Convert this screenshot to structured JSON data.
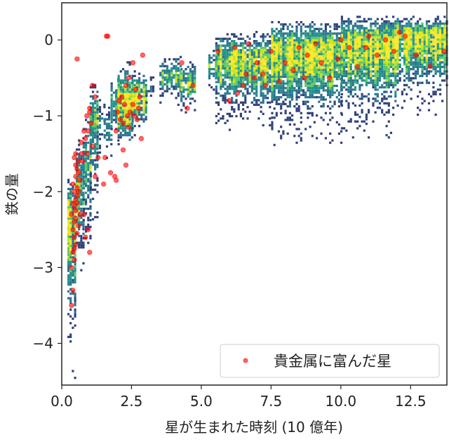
{
  "chart_data": {
    "type": "heatmap",
    "xlabel": "星が生まれた時刻 (10 億年)",
    "ylabel": "鉄の量",
    "xlim": [
      0,
      13.8
    ],
    "ylim": [
      -4.55,
      0.49
    ],
    "xticks": [
      "0.0",
      "2.5",
      "5.0",
      "7.5",
      "10.0",
      "12.5"
    ],
    "xtick_values": [
      0,
      2.5,
      5,
      7.5,
      10,
      12.5
    ],
    "yticks": [
      "0",
      "−1",
      "−2",
      "−3",
      "−4"
    ],
    "ytick_values": [
      0,
      -1,
      -2,
      -3,
      -4
    ],
    "grid": false,
    "colormap": [
      "#30407a",
      "#2c728e",
      "#21918c",
      "#5ec962",
      "#c8e020",
      "#fde725"
    ],
    "histogram_columns": {
      "description_fields": [
        "x_start",
        "x_end",
        "fe_low",
        "fe_high",
        "fe_peak",
        "strength"
      ],
      "rows": [
        [
          0.2,
          0.5,
          -4.5,
          -1.8,
          -2.3,
          0.8
        ],
        [
          0.5,
          0.75,
          -3.2,
          -1.3,
          -2.0,
          0.9
        ],
        [
          0.75,
          1.0,
          -2.9,
          -1.0,
          -1.6,
          0.6
        ],
        [
          1.0,
          1.25,
          -2.5,
          -0.6,
          -1.0,
          0.5
        ],
        [
          1.25,
          1.5,
          -1.5,
          -0.8,
          -1.1,
          0.3
        ],
        [
          1.5,
          1.75,
          -1.6,
          -0.9,
          -1.2,
          0.3
        ],
        [
          1.75,
          2.0,
          -1.4,
          -0.5,
          -0.9,
          0.6
        ],
        [
          2.0,
          2.5,
          -1.6,
          -0.3,
          -0.9,
          0.8
        ],
        [
          2.5,
          3.0,
          -1.3,
          -0.4,
          -0.8,
          0.8
        ],
        [
          3.0,
          3.3,
          -0.9,
          -0.5,
          -0.7,
          0.2
        ],
        [
          3.5,
          4.25,
          -0.9,
          -0.2,
          -0.5,
          0.6
        ],
        [
          4.25,
          4.75,
          -1.0,
          -0.3,
          -0.6,
          0.7
        ],
        [
          5.25,
          5.5,
          -0.7,
          -0.1,
          -0.4,
          0.5
        ],
        [
          5.5,
          7.5,
          -1.2,
          0.1,
          -0.3,
          0.85
        ],
        [
          7.5,
          10.0,
          -1.4,
          0.25,
          -0.15,
          0.9
        ],
        [
          10.0,
          12.0,
          -1.3,
          0.3,
          -0.05,
          0.95
        ],
        [
          12.0,
          13.8,
          -1.0,
          0.3,
          0.05,
          0.95
        ]
      ]
    },
    "scatter": {
      "name": "貴金属に富んだ星",
      "color": "#ff0000",
      "points": [
        [
          0.45,
          -1.55
        ],
        [
          0.5,
          -1.65
        ],
        [
          0.55,
          -1.7
        ],
        [
          0.6,
          -1.75
        ],
        [
          0.5,
          -1.8
        ],
        [
          0.4,
          -1.9
        ],
        [
          0.45,
          -2.0
        ],
        [
          0.55,
          -2.05
        ],
        [
          0.5,
          -2.1
        ],
        [
          0.4,
          -2.15
        ],
        [
          0.45,
          -2.2
        ],
        [
          0.5,
          -2.25
        ],
        [
          0.35,
          -2.3
        ],
        [
          0.5,
          -2.35
        ],
        [
          0.45,
          -2.4
        ],
        [
          0.4,
          -2.5
        ],
        [
          0.55,
          -2.55
        ],
        [
          0.45,
          -2.6
        ],
        [
          0.5,
          -2.7
        ],
        [
          0.4,
          -2.8
        ],
        [
          0.45,
          -2.9
        ],
        [
          0.35,
          -3.0
        ],
        [
          0.4,
          -3.3
        ],
        [
          0.35,
          -3.5
        ],
        [
          0.6,
          -1.6
        ],
        [
          0.65,
          -1.85
        ],
        [
          0.6,
          -2.0
        ],
        [
          0.7,
          -1.5
        ],
        [
          0.65,
          -2.3
        ],
        [
          0.55,
          -1.95
        ],
        [
          0.6,
          -2.45
        ],
        [
          0.5,
          -1.5
        ],
        [
          0.45,
          -2.75
        ],
        [
          0.55,
          -2.15
        ],
        [
          0.8,
          -1.2
        ],
        [
          0.9,
          -1.0
        ],
        [
          1.0,
          -0.95
        ],
        [
          1.05,
          -1.1
        ],
        [
          0.95,
          -1.2
        ],
        [
          0.85,
          -1.3
        ],
        [
          1.0,
          -0.9
        ],
        [
          1.1,
          -1.4
        ],
        [
          0.9,
          -1.5
        ],
        [
          1.1,
          -0.6
        ],
        [
          1.2,
          -0.75
        ],
        [
          0.7,
          -1.35
        ],
        [
          0.75,
          -1.6
        ],
        [
          0.8,
          -2.3
        ],
        [
          0.95,
          -2.5
        ],
        [
          1.0,
          -2.8
        ],
        [
          0.85,
          -2.6
        ],
        [
          1.2,
          -1.8
        ],
        [
          1.3,
          -1.55
        ],
        [
          0.55,
          -0.25
        ],
        [
          1.6,
          0.05
        ],
        [
          1.65,
          0.05
        ],
        [
          1.55,
          -1.55
        ],
        [
          1.75,
          -1.75
        ],
        [
          1.9,
          -1.8
        ],
        [
          1.95,
          -1.2
        ],
        [
          2.0,
          -0.95
        ],
        [
          2.05,
          -0.8
        ],
        [
          2.1,
          -1.05
        ],
        [
          2.15,
          -0.75
        ],
        [
          2.2,
          -1.1
        ],
        [
          2.25,
          -0.85
        ],
        [
          2.3,
          -0.6
        ],
        [
          2.35,
          -1.0
        ],
        [
          2.4,
          -1.15
        ],
        [
          2.45,
          -0.95
        ],
        [
          2.55,
          -0.3
        ],
        [
          2.55,
          -0.85
        ],
        [
          2.6,
          -1.0
        ],
        [
          2.65,
          -0.65
        ],
        [
          2.7,
          -1.05
        ],
        [
          2.8,
          -0.75
        ],
        [
          2.75,
          -0.9
        ],
        [
          2.85,
          -1.3
        ],
        [
          2.3,
          -1.65
        ],
        [
          2.2,
          -1.45
        ],
        [
          1.95,
          -1.85
        ],
        [
          2.9,
          -0.2
        ],
        [
          1.5,
          -1.9
        ],
        [
          2.4,
          -0.5
        ],
        [
          4.3,
          -0.3
        ],
        [
          4.5,
          -0.9
        ],
        [
          4.7,
          -0.6
        ],
        [
          6.2,
          -0.1
        ],
        [
          5.6,
          -0.15
        ],
        [
          6.6,
          -0.45
        ],
        [
          6.9,
          -0.5
        ],
        [
          6.0,
          -0.8
        ],
        [
          7.3,
          -0.6
        ],
        [
          6.7,
          -0.05
        ],
        [
          7.5,
          -0.15
        ],
        [
          7.0,
          -0.3
        ],
        [
          7.2,
          -0.45
        ],
        [
          6.5,
          -0.6
        ],
        [
          7.8,
          -0.55
        ],
        [
          8.0,
          -0.3
        ],
        [
          8.5,
          -0.1
        ],
        [
          8.3,
          -0.4
        ],
        [
          8.8,
          -0.2
        ],
        [
          9.1,
          -0.05
        ],
        [
          9.3,
          -0.3
        ],
        [
          9.6,
          -0.5
        ],
        [
          9.9,
          -0.25
        ],
        [
          10.3,
          -0.1
        ],
        [
          10.6,
          -0.35
        ],
        [
          10.9,
          -0.1
        ],
        [
          11.3,
          -0.2
        ],
        [
          11.6,
          0.0
        ],
        [
          11.9,
          -0.15
        ],
        [
          12.1,
          0.1
        ],
        [
          12.3,
          0.05
        ],
        [
          12.7,
          -0.2
        ],
        [
          13.2,
          -0.35
        ],
        [
          13.7,
          -0.15
        ],
        [
          8.7,
          -0.5
        ],
        [
          10.0,
          0.0
        ],
        [
          11.0,
          0.05
        ],
        [
          6.3,
          -0.7
        ]
      ]
    },
    "legend": {
      "position": "lower-right",
      "label": "貴金属に富んだ星"
    }
  }
}
